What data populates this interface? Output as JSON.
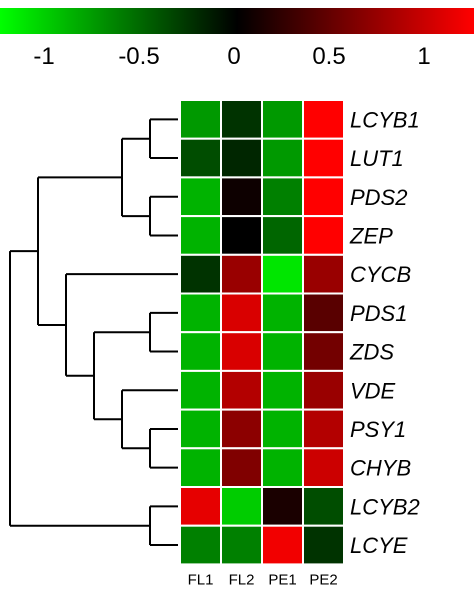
{
  "chart_data": {
    "type": "heatmap",
    "title": "",
    "colorscale": {
      "min": -1,
      "max": 1,
      "low_color": "#00ff00",
      "mid_color": "#000000",
      "high_color": "#ff0000",
      "ticks": [
        -1,
        -0.5,
        0,
        0.5,
        1
      ],
      "tick_labels": [
        "-1",
        "-0.5",
        "0",
        "0.5",
        "1"
      ],
      "placement": "top"
    },
    "columns": [
      "FL1",
      "FL2",
      "PE1",
      "PE2"
    ],
    "rows": [
      "LCYB1",
      "LUT1",
      "PDS2",
      "ZEP",
      "CYCB",
      "PDS1",
      "ZDS",
      "VDE",
      "PSY1",
      "CHYB",
      "LCYB2",
      "LCYE"
    ],
    "values": [
      [
        -0.6,
        -0.2,
        -0.6,
        1.0
      ],
      [
        -0.3,
        -0.15,
        -0.6,
        1.0
      ],
      [
        -0.7,
        0.05,
        -0.5,
        1.0
      ],
      [
        -0.7,
        0.0,
        -0.4,
        1.0
      ],
      [
        -0.2,
        0.6,
        -0.9,
        0.6
      ],
      [
        -0.7,
        0.85,
        -0.7,
        0.35
      ],
      [
        -0.7,
        0.85,
        -0.7,
        0.45
      ],
      [
        -0.7,
        0.7,
        -0.7,
        0.6
      ],
      [
        -0.7,
        0.55,
        -0.7,
        0.7
      ],
      [
        -0.7,
        0.5,
        -0.7,
        0.8
      ],
      [
        0.9,
        -0.8,
        0.1,
        -0.3
      ],
      [
        -0.5,
        -0.5,
        0.95,
        -0.2
      ]
    ],
    "dendrogram": {
      "orientation": "left",
      "clusters": [
        {
          "children": [
            "LCYB1",
            "LUT1"
          ]
        },
        {
          "children": [
            "PDS2",
            "ZEP"
          ]
        },
        {
          "children": [
            "c0",
            "c1"
          ]
        },
        {
          "children": [
            "PDS1",
            "ZDS"
          ]
        },
        {
          "children": [
            "PSY1",
            "CHYB"
          ]
        },
        {
          "children": [
            "VDE",
            "c4"
          ]
        },
        {
          "children": [
            "c3",
            "c5"
          ]
        },
        {
          "children": [
            "CYCB",
            "c6"
          ]
        },
        {
          "children": [
            "c2",
            "c7"
          ]
        },
        {
          "children": [
            "LCYB2",
            "LCYE"
          ]
        },
        {
          "children": [
            "c8",
            "c9"
          ]
        }
      ]
    },
    "grid": true,
    "legend": "colorbar-top"
  }
}
